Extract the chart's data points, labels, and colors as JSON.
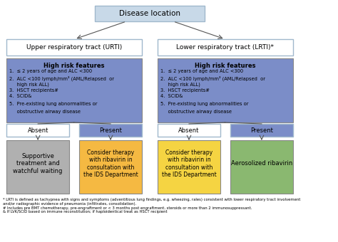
{
  "title": "Disease location",
  "urti_label": "Upper respiratory tract (URTI)",
  "lrti_label": "Lower respiratory tract (LRTI)*",
  "high_risk_title": "High risk features",
  "high_risk_items": [
    "≤ 2 years of age and ALC <300",
    "ALC <100 lymph/mm³ (AML/Relapsed  or\n    high risk ALL)",
    "HSCT recipients#",
    "SCID&",
    "Pre-existing lung abnormalities or\n    obstructive airway disease"
  ],
  "absent_label": "Absent",
  "present_label": "Present",
  "urti_absent_text": "Supportive\ntreatment and\nwatchful waiting",
  "urti_present_text": "Consider therapy\nwith ribavirin in\nconsultation with\nthe IDS Department",
  "lrti_absent_text": "Consider therapy\nwith ribavirin in\nconsultation with\nthe IDS Department",
  "lrti_present_text": "Aerosolized ribavirin",
  "footnote": "* LRTI is defined as tachypnea with signs and symptoms (adventitious lung findings, e.g. wheezing, rales) consistent with lower respiratory tract involvement\nand/or radiographic evidence of pneumonia (infiltrates, consolidation).\n# Includes pre BMT chemotherapy, pre-engraftment or < 3 months post engraftment, steroids or more than 2 immunosuppressant.\n& If LVK/SCID based on immune reconstitution; if haploidentical treat as HSCT recipient",
  "color_title_box": "#c8d9e8",
  "color_urti_lrti_box": "#ffffff",
  "color_high_risk": "#7b8dc8",
  "color_absent_header": "#ffffff",
  "color_present_header": "#7b8dc8",
  "color_gray_box": "#b0b0b0",
  "color_orange_box": "#f5b942",
  "color_yellow_box": "#f5d442",
  "color_green_box": "#8ab870",
  "border_color": "#a0a0c0"
}
